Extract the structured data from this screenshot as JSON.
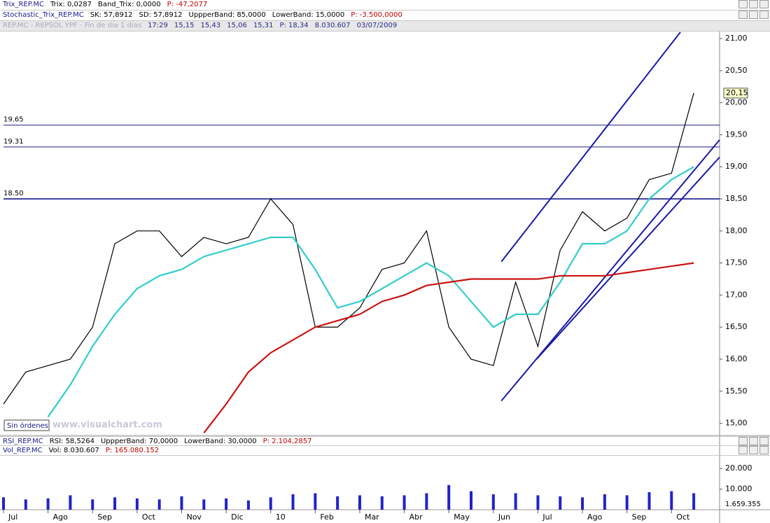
{
  "header": {
    "trix": [
      "Trix_REP.MC",
      "Trix: 0,0287",
      "Band_Trix: 0,0000",
      "P: -47,2077"
    ],
    "stochastic": [
      "Stochastic_Trix_REP.MC",
      "SK: 57,8912",
      "SD: 57,8912",
      "UppperBand: 85,0000",
      "LowerBand: 15,0000",
      "P: -3.500,0000"
    ],
    "quote": [
      "REP.MC - REPSOL YPF - Fin de dia 1 dias",
      "17:29",
      "15,15",
      "15,43",
      "15,06",
      "15,31",
      "P: 18,34",
      "8.030.607",
      "03/07/2009"
    ],
    "rsi": [
      "RSI_REP.MC",
      "RSI: 58,5264",
      "UppperBand: 70,0000",
      "LowerBand: 30,0000",
      "P: 2.104,2857"
    ],
    "vol": [
      "Vol_REP.MC",
      "Vol: 8.030.607",
      "P: 165.080.152"
    ],
    "badge": "Sin órdenes",
    "watermark": "www.visualchart.com"
  },
  "chart_data": {
    "type": "line",
    "x": [
      0,
      0.5,
      1,
      1.5,
      2,
      2.5,
      3,
      3.5,
      4,
      4.5,
      5,
      5.5,
      6,
      6.5,
      7,
      7.5,
      8,
      8.5,
      9,
      9.5,
      10,
      10.5,
      11,
      11.5,
      12,
      12.5,
      13,
      13.5,
      14,
      14.5,
      15,
      15.5
    ],
    "xlim": [
      0,
      16.08
    ],
    "xticks": [
      {
        "value": 0,
        "label": "Jul"
      },
      {
        "value": 1,
        "label": "Ago"
      },
      {
        "value": 2,
        "label": "Sep"
      },
      {
        "value": 3,
        "label": "Oct"
      },
      {
        "value": 4,
        "label": "Nov"
      },
      {
        "value": 5,
        "label": "Dic"
      },
      {
        "value": 6,
        "label": "10"
      },
      {
        "value": 7,
        "label": "Feb"
      },
      {
        "value": 8,
        "label": "Mar"
      },
      {
        "value": 9,
        "label": "Abr"
      },
      {
        "value": 10,
        "label": "May"
      },
      {
        "value": 11,
        "label": "Jun"
      },
      {
        "value": 12,
        "label": "Jul"
      },
      {
        "value": 13,
        "label": "Ago"
      },
      {
        "value": 14,
        "label": "Sep"
      },
      {
        "value": 15,
        "label": "Oct"
      }
    ],
    "ylim": [
      14.81,
      21.11
    ],
    "yticks": [
      {
        "value": 15,
        "label": "15,00"
      },
      {
        "value": 15.5,
        "label": "15,50"
      },
      {
        "value": 16,
        "label": "16,00"
      },
      {
        "value": 16.5,
        "label": "16,50"
      },
      {
        "value": 17,
        "label": "17,00"
      },
      {
        "value": 17.5,
        "label": "17,50"
      },
      {
        "value": 18,
        "label": "18,00"
      },
      {
        "value": 18.5,
        "label": "18,50"
      },
      {
        "value": 19,
        "label": "19,00"
      },
      {
        "value": 19.5,
        "label": "19,50"
      },
      {
        "value": 20,
        "label": "20,00"
      },
      {
        "value": 20.5,
        "label": "20,50"
      },
      {
        "value": 21,
        "label": "21,00"
      }
    ],
    "series": [
      {
        "color": "#000000",
        "values": [
          15.3,
          15.8,
          15.9,
          16.0,
          16.5,
          17.8,
          18.0,
          18.0,
          17.6,
          17.9,
          17.8,
          17.9,
          18.5,
          18.1,
          16.5,
          16.5,
          16.8,
          17.4,
          17.5,
          18.0,
          16.5,
          16.0,
          15.9,
          17.2,
          16.2,
          17.7,
          18.3,
          18.0,
          18.2,
          18.8,
          18.9,
          20.15
        ]
      },
      {
        "color": "#33cccc",
        "values": [
          null,
          null,
          15.1,
          15.6,
          16.2,
          16.7,
          17.1,
          17.3,
          17.4,
          17.6,
          17.7,
          17.8,
          17.9,
          17.9,
          17.4,
          16.8,
          16.9,
          17.1,
          17.3,
          17.5,
          17.3,
          16.9,
          16.5,
          16.7,
          16.7,
          17.2,
          17.8,
          17.8,
          18.0,
          18.5,
          18.8,
          19.0
        ]
      },
      {
        "color": "#cc1111",
        "values": [
          null,
          null,
          null,
          null,
          null,
          null,
          null,
          null,
          null,
          14.85,
          15.3,
          15.8,
          16.1,
          16.3,
          16.5,
          16.6,
          16.7,
          16.9,
          17.0,
          17.15,
          17.2,
          17.25,
          17.25,
          17.25,
          17.25,
          17.3,
          17.3,
          17.3,
          17.35,
          17.4,
          17.45,
          17.5
        ]
      }
    ],
    "hlines": [
      {
        "value": 19.65,
        "label": "19.65"
      },
      {
        "value": 19.31,
        "label": "19.31"
      },
      {
        "value": 18.5,
        "label": "18.50"
      }
    ],
    "last_price": {
      "value": 20.15,
      "label": "20,15"
    },
    "trendlines": [
      {
        "x": [
          11.18,
          15.2
        ],
        "y": [
          17.52,
          21.1
        ]
      },
      {
        "x": [
          11.18,
          16.08
        ],
        "y": [
          15.35,
          19.42
        ]
      },
      {
        "x": [
          11.97,
          16.08
        ],
        "y": [
          16.0,
          19.15
        ]
      }
    ],
    "trendline_color": "#1a1aa8",
    "volume": {
      "color": "#2222cc",
      "ylim": [
        0,
        26200
      ],
      "yticks": [
        {
          "value": 10000,
          "label": "10.000"
        },
        {
          "value": 20000,
          "label": "20.000"
        }
      ],
      "values": [
        6000,
        5000,
        5500,
        7000,
        5000,
        6000,
        5500,
        5000,
        6500,
        5000,
        5500,
        4500,
        6000,
        7500,
        8000,
        6500,
        7000,
        6500,
        7000,
        8000,
        12000,
        9000,
        7500,
        8000,
        7000,
        6500,
        6000,
        7500,
        7000,
        8500,
        9000,
        8000
      ],
      "last_label": "1.659.355"
    }
  }
}
